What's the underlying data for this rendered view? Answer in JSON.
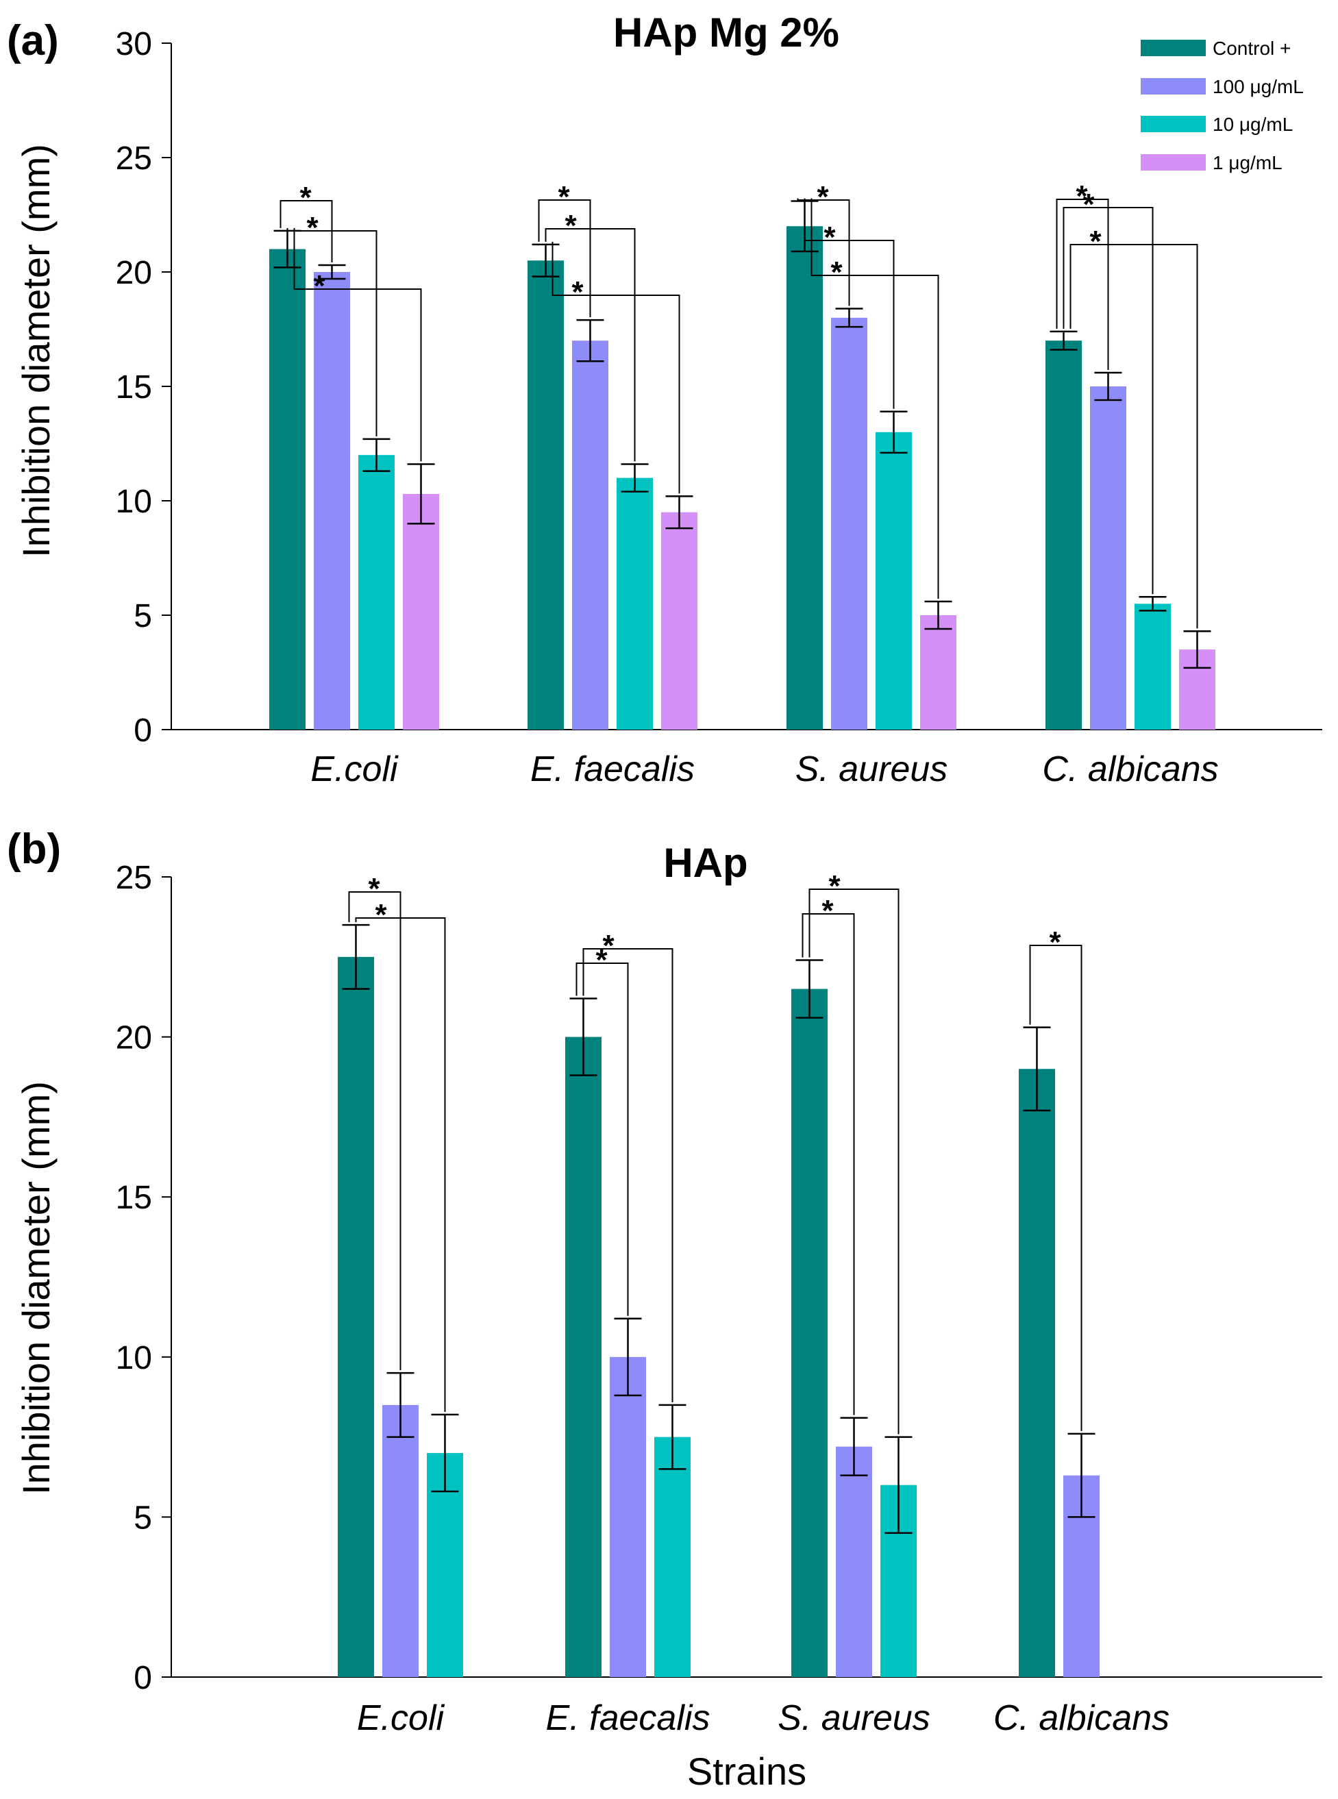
{
  "figure": {
    "x_axis_title": "Strains"
  },
  "legend": [
    {
      "name": "Control +",
      "color": "#00837F"
    },
    {
      "name": "100 μg/mL",
      "color": "#8D8CF9"
    },
    {
      "name": "10 μg/mL",
      "color": "#00C3C1"
    },
    {
      "name": "1 μg/mL",
      "color": "#D590F7"
    }
  ],
  "chart_data": [
    {
      "type": "bar",
      "panel_label": "(a)",
      "title": "HAp Mg 2%",
      "ylabel": "Inhibition diameter (mm)",
      "xlabel": "",
      "ylim": [
        0,
        30
      ],
      "yticks": [
        0,
        5,
        10,
        15,
        20,
        25,
        30
      ],
      "categories": [
        "E.coli",
        "E. faecalis",
        "S. aureus",
        "C. albicans"
      ],
      "series": [
        {
          "name": "Control +",
          "color": "#00837F",
          "values": [
            21,
            20.5,
            22,
            17
          ],
          "errors": [
            0.8,
            0.7,
            1.1,
            0.4
          ]
        },
        {
          "name": "100 μg/mL",
          "color": "#8D8CF9",
          "values": [
            20,
            17,
            18,
            15
          ],
          "errors": [
            0.3,
            0.9,
            0.4,
            0.6
          ]
        },
        {
          "name": "10 μg/mL",
          "color": "#00C3C1",
          "values": [
            12,
            11,
            13,
            5.5
          ],
          "errors": [
            0.7,
            0.6,
            0.9,
            0.3
          ]
        },
        {
          "name": "1 μg/mL",
          "color": "#D590F7",
          "values": [
            10.3,
            9.5,
            5,
            3.5
          ],
          "errors": [
            1.3,
            0.7,
            0.6,
            0.8
          ]
        }
      ],
      "significance": [
        {
          "category": 0,
          "compare": [
            1,
            2,
            3
          ],
          "label": "*"
        },
        {
          "category": 1,
          "compare": [
            1,
            2,
            3
          ],
          "label": "*"
        },
        {
          "category": 2,
          "compare": [
            1,
            2,
            3
          ],
          "label": "*"
        },
        {
          "category": 3,
          "compare": [
            1,
            2,
            3
          ],
          "label": "*"
        }
      ],
      "grid": false,
      "legend_position": "top-right"
    },
    {
      "type": "bar",
      "panel_label": "(b)",
      "title": "HAp",
      "ylabel": "Inhibition diameter (mm)",
      "xlabel": "Strains",
      "ylim": [
        0,
        25
      ],
      "yticks": [
        0,
        5,
        10,
        15,
        20,
        25
      ],
      "categories": [
        "E.coli",
        "E. faecalis",
        "S. aureus",
        "C. albicans"
      ],
      "series": [
        {
          "name": "Control +",
          "color": "#00837F",
          "values": [
            22.5,
            20,
            21.5,
            19
          ],
          "errors": [
            1.0,
            1.2,
            0.9,
            1.3
          ]
        },
        {
          "name": "100 μg/mL",
          "color": "#8D8CF9",
          "values": [
            8.5,
            10,
            7.2,
            6.3
          ],
          "errors": [
            1.0,
            1.2,
            0.9,
            1.3
          ]
        },
        {
          "name": "10 μg/mL",
          "color": "#00C3C1",
          "values": [
            7,
            7.5,
            6,
            null
          ],
          "errors": [
            1.2,
            1.0,
            1.5,
            null
          ]
        }
      ],
      "significance": [
        {
          "category": 0,
          "compare": [
            1,
            2
          ],
          "label": "*"
        },
        {
          "category": 1,
          "compare": [
            1,
            2
          ],
          "label": "*"
        },
        {
          "category": 2,
          "compare": [
            1,
            2
          ],
          "label": "*"
        },
        {
          "category": 3,
          "compare": [
            1
          ],
          "label": "*"
        }
      ],
      "grid": false,
      "legend_position": "none"
    }
  ]
}
